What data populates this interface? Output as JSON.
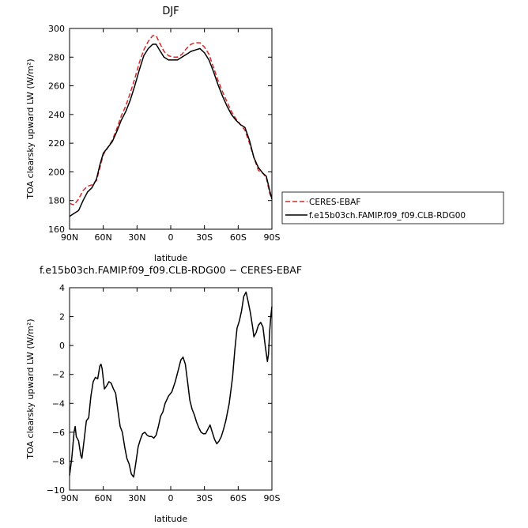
{
  "chart_data": [
    {
      "type": "line",
      "title": "DJF",
      "xlabel": "latitude",
      "ylabel": "TOA clearsky upward LW (W/m²)",
      "xlim": [
        90,
        -90
      ],
      "ylim": [
        160,
        300
      ],
      "x_ticks": [
        90,
        60,
        30,
        0,
        -30,
        -60,
        -90
      ],
      "x_tick_labels": [
        "90N",
        "60N",
        "30N",
        "0",
        "30S",
        "60S",
        "90S"
      ],
      "y_ticks": [
        160,
        180,
        200,
        220,
        240,
        260,
        280,
        300
      ],
      "y_tick_labels": [
        "160",
        "180",
        "200",
        "220",
        "240",
        "260",
        "280",
        "300"
      ],
      "legend_position": "right",
      "series": [
        {
          "name": "CERES-EBAF",
          "color": "#d62828",
          "dash": "dashed",
          "points": [
            [
              90,
              178
            ],
            [
              86,
              177
            ],
            [
              82,
              181
            ],
            [
              78,
              187
            ],
            [
              74,
              190
            ],
            [
              70,
              191
            ],
            [
              66,
              194
            ],
            [
              63,
              203
            ],
            [
              60,
              212
            ],
            [
              56,
              217
            ],
            [
              52,
              222
            ],
            [
              48,
              230
            ],
            [
              44,
              239
            ],
            [
              40,
              246
            ],
            [
              36,
              255
            ],
            [
              32,
              265
            ],
            [
              28,
              276
            ],
            [
              24,
              285
            ],
            [
              20,
              291
            ],
            [
              16,
              295
            ],
            [
              13,
              295
            ],
            [
              10,
              290
            ],
            [
              6,
              284
            ],
            [
              2,
              281
            ],
            [
              -2,
              280
            ],
            [
              -6,
              280
            ],
            [
              -10,
              282
            ],
            [
              -14,
              286
            ],
            [
              -18,
              289
            ],
            [
              -22,
              290
            ],
            [
              -26,
              290
            ],
            [
              -30,
              287
            ],
            [
              -34,
              282
            ],
            [
              -38,
              273
            ],
            [
              -42,
              264
            ],
            [
              -46,
              256
            ],
            [
              -50,
              249
            ],
            [
              -54,
              242
            ],
            [
              -58,
              237
            ],
            [
              -62,
              233
            ],
            [
              -66,
              229
            ],
            [
              -70,
              220
            ],
            [
              -74,
              210
            ],
            [
              -78,
              201
            ],
            [
              -82,
              199
            ],
            [
              -85,
              196
            ],
            [
              -88,
              185
            ],
            [
              -90,
              181
            ]
          ]
        },
        {
          "name": "f.e15b03ch.FAMIP.f09_f09.CLB-RDG00",
          "color": "#000000",
          "dash": "solid",
          "points": [
            [
              90,
              169
            ],
            [
              86,
              171
            ],
            [
              82,
              173
            ],
            [
              78,
              180
            ],
            [
              74,
              186
            ],
            [
              70,
              189
            ],
            [
              66,
              195
            ],
            [
              63,
              205
            ],
            [
              60,
              213
            ],
            [
              56,
              217
            ],
            [
              52,
              221
            ],
            [
              48,
              228
            ],
            [
              44,
              236
            ],
            [
              40,
              242
            ],
            [
              36,
              250
            ],
            [
              32,
              260
            ],
            [
              28,
              271
            ],
            [
              24,
              281
            ],
            [
              20,
              286
            ],
            [
              16,
              289
            ],
            [
              13,
              289
            ],
            [
              10,
              285
            ],
            [
              6,
              280
            ],
            [
              2,
              278
            ],
            [
              -2,
              278
            ],
            [
              -6,
              278
            ],
            [
              -10,
              280
            ],
            [
              -14,
              282
            ],
            [
              -18,
              284
            ],
            [
              -22,
              285
            ],
            [
              -26,
              286
            ],
            [
              -30,
              283
            ],
            [
              -34,
              278
            ],
            [
              -38,
              270
            ],
            [
              -42,
              261
            ],
            [
              -46,
              253
            ],
            [
              -50,
              246
            ],
            [
              -54,
              240
            ],
            [
              -58,
              236
            ],
            [
              -62,
              233
            ],
            [
              -66,
              231
            ],
            [
              -70,
              222
            ],
            [
              -74,
              210
            ],
            [
              -78,
              203
            ],
            [
              -82,
              199
            ],
            [
              -85,
              197
            ],
            [
              -88,
              187
            ],
            [
              -90,
              181
            ]
          ]
        }
      ]
    },
    {
      "type": "line",
      "title": "f.e15b03ch.FAMIP.f09_f09.CLB-RDG00 − CERES-EBAF",
      "xlabel": "latitude",
      "ylabel": "TOA clearsky upward LW (W/m²)",
      "xlim": [
        90,
        -90
      ],
      "ylim": [
        -10,
        4
      ],
      "x_ticks": [
        90,
        60,
        30,
        0,
        -30,
        -60,
        -90
      ],
      "x_tick_labels": [
        "90N",
        "60N",
        "30N",
        "0",
        "30S",
        "60S",
        "90S"
      ],
      "y_ticks": [
        -10,
        -8,
        -6,
        -4,
        -2,
        0,
        2,
        4
      ],
      "y_tick_labels": [
        "−10",
        "−8",
        "−6",
        "−4",
        "−2",
        "0",
        "2",
        "4"
      ],
      "series": [
        {
          "color": "#000000",
          "dash": "solid",
          "points": [
            [
              90,
              -9
            ],
            [
              88,
              -7.8
            ],
            [
              86,
              -6
            ],
            [
              85,
              -5.6
            ],
            [
              84,
              -6.3
            ],
            [
              82,
              -6.6
            ],
            [
              80,
              -7.6
            ],
            [
              79,
              -7.8
            ],
            [
              77,
              -6.5
            ],
            [
              75,
              -5.2
            ],
            [
              73,
              -5
            ],
            [
              71,
              -3.5
            ],
            [
              69,
              -2.5
            ],
            [
              67,
              -2.2
            ],
            [
              65,
              -2.3
            ],
            [
              63,
              -1.4
            ],
            [
              62,
              -1.3
            ],
            [
              61,
              -1.6
            ],
            [
              59,
              -3
            ],
            [
              57,
              -2.8
            ],
            [
              55,
              -2.5
            ],
            [
              53,
              -2.6
            ],
            [
              51,
              -3
            ],
            [
              49,
              -3.3
            ],
            [
              47,
              -4.5
            ],
            [
              45,
              -5.6
            ],
            [
              43,
              -6
            ],
            [
              41,
              -7
            ],
            [
              39,
              -7.8
            ],
            [
              37,
              -8.2
            ],
            [
              35,
              -8.9
            ],
            [
              33,
              -9.1
            ],
            [
              31,
              -8.1
            ],
            [
              29,
              -7
            ],
            [
              27,
              -6.5
            ],
            [
              25,
              -6.1
            ],
            [
              23,
              -6
            ],
            [
              21,
              -6.2
            ],
            [
              19,
              -6.3
            ],
            [
              17,
              -6.3
            ],
            [
              15,
              -6.4
            ],
            [
              13,
              -6.2
            ],
            [
              11,
              -5.6
            ],
            [
              9,
              -4.9
            ],
            [
              7,
              -4.6
            ],
            [
              5,
              -4
            ],
            [
              2,
              -3.5
            ],
            [
              -1,
              -3.2
            ],
            [
              -4,
              -2.5
            ],
            [
              -7,
              -1.6
            ],
            [
              -9,
              -1
            ],
            [
              -11,
              -0.8
            ],
            [
              -13,
              -1.3
            ],
            [
              -15,
              -2.5
            ],
            [
              -17,
              -3.8
            ],
            [
              -19,
              -4.4
            ],
            [
              -21,
              -4.8
            ],
            [
              -23,
              -5.3
            ],
            [
              -25,
              -5.7
            ],
            [
              -27,
              -6
            ],
            [
              -29,
              -6.1
            ],
            [
              -31,
              -6.1
            ],
            [
              -33,
              -5.8
            ],
            [
              -35,
              -5.5
            ],
            [
              -37,
              -6
            ],
            [
              -39,
              -6.5
            ],
            [
              -41,
              -6.8
            ],
            [
              -43,
              -6.6
            ],
            [
              -45,
              -6.3
            ],
            [
              -47,
              -5.8
            ],
            [
              -49,
              -5.2
            ],
            [
              -52,
              -4
            ],
            [
              -55,
              -2.2
            ],
            [
              -57,
              -0.3
            ],
            [
              -59,
              1.2
            ],
            [
              -61,
              1.7
            ],
            [
              -63,
              2.4
            ],
            [
              -65,
              3.4
            ],
            [
              -67,
              3.7
            ],
            [
              -69,
              3
            ],
            [
              -71,
              2.2
            ],
            [
              -73,
              1.2
            ],
            [
              -74,
              0.6
            ],
            [
              -76,
              0.9
            ],
            [
              -78,
              1.4
            ],
            [
              -80,
              1.6
            ],
            [
              -82,
              1.3
            ],
            [
              -84,
              0
            ],
            [
              -86,
              -1.1
            ],
            [
              -87,
              -0.6
            ],
            [
              -88,
              1
            ],
            [
              -89,
              2
            ],
            [
              -90,
              2.7
            ]
          ]
        }
      ]
    }
  ]
}
